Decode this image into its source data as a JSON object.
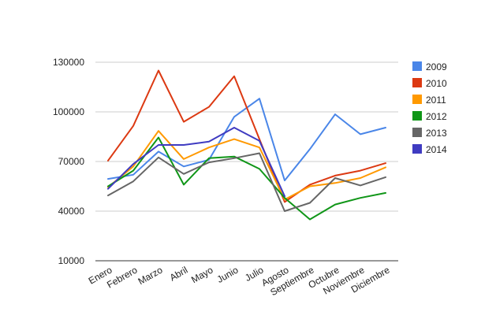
{
  "chart_data": {
    "type": "line",
    "title": "",
    "xlabel": "",
    "ylabel": "",
    "categories": [
      "Enero",
      "Febrero",
      "Marzo",
      "Abril",
      "Mayo",
      "Junio",
      "Julio",
      "Agosto",
      "Septiembre",
      "Octubre",
      "Noviembre",
      "Diciembre"
    ],
    "ylim": [
      10000,
      130000
    ],
    "yticks": [
      10000,
      40000,
      70000,
      100000,
      130000
    ],
    "ytick_labels": [
      "10000",
      "40000",
      "70000",
      "100000",
      "130000"
    ],
    "grid": "horizontal",
    "legend_position": "right",
    "series": [
      {
        "name": "2009",
        "color": "#4a86e8",
        "values": [
          59500,
          62000,
          76000,
          67000,
          71000,
          97000,
          108000,
          58500,
          77500,
          98500,
          86500,
          90500
        ]
      },
      {
        "name": "2010",
        "color": "#dc3912",
        "values": [
          70500,
          91500,
          125000,
          94000,
          103000,
          121500,
          83500,
          45500,
          56000,
          61500,
          64500,
          69000
        ]
      },
      {
        "name": "2011",
        "color": "#ff9900",
        "values": [
          54500,
          67000,
          88500,
          71500,
          78500,
          83500,
          78500,
          47000,
          55000,
          57000,
          60000,
          66500
        ]
      },
      {
        "name": "2012",
        "color": "#109618",
        "values": [
          55000,
          64500,
          84500,
          56000,
          72000,
          73000,
          65500,
          48000,
          35000,
          44000,
          48000,
          51000
        ]
      },
      {
        "name": "2013",
        "color": "#666666",
        "values": [
          49500,
          58000,
          72500,
          62500,
          69500,
          72000,
          75000,
          40000,
          45000,
          60000,
          55500,
          60500
        ]
      },
      {
        "name": "2014",
        "color": "#3f3bc1",
        "values": [
          53500,
          68500,
          80000,
          80000,
          82000,
          90500,
          82500,
          49000,
          null,
          null,
          null,
          null
        ]
      }
    ]
  }
}
